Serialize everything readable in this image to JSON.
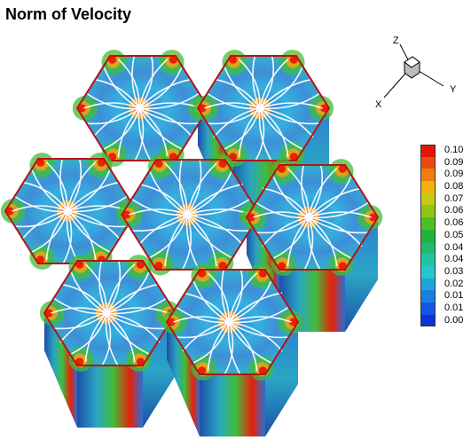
{
  "title": "Norm of Velocity",
  "legend": {
    "entries": [
      {
        "label": "0.10",
        "color": "#e8120c"
      },
      {
        "label": "0.09",
        "color": "#ec4a0c"
      },
      {
        "label": "0.09",
        "color": "#ef7c0e"
      },
      {
        "label": "0.08",
        "color": "#f3b10e"
      },
      {
        "label": "0.07",
        "color": "#c6cc12"
      },
      {
        "label": "0.06",
        "color": "#8ec61a"
      },
      {
        "label": "0.06",
        "color": "#4fbe22"
      },
      {
        "label": "0.05",
        "color": "#22b43a"
      },
      {
        "label": "0.04",
        "color": "#22b870"
      },
      {
        "label": "0.04",
        "color": "#20c4a0"
      },
      {
        "label": "0.03",
        "color": "#22c8cc"
      },
      {
        "label": "0.02",
        "color": "#1ea6dc"
      },
      {
        "label": "0.01",
        "color": "#1a7ee2"
      },
      {
        "label": "0.01",
        "color": "#1456e4"
      },
      {
        "label": "0.00",
        "color": "#0f32d8"
      }
    ]
  },
  "axes": {
    "x": "X",
    "y": "Y",
    "z": "Z"
  },
  "colors": {
    "cell_fill": "#3d8fd6",
    "cell_center": "#35b0df",
    "cell_edge": "#b31515",
    "hot": "#e8200c",
    "warm": "#f2a20e",
    "mid": "#3fbd3a",
    "streamline": "#ffffff",
    "side_dark": "#1d4fa8"
  }
}
